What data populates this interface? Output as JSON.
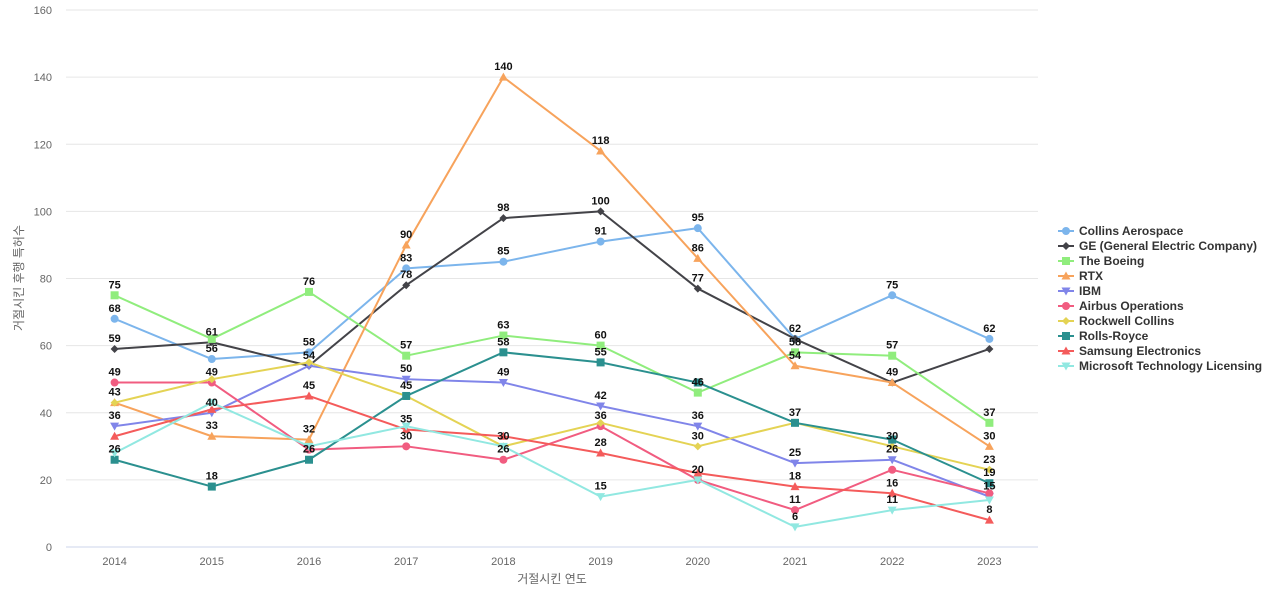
{
  "chart_data": {
    "type": "line",
    "title": "",
    "xlabel": "거절시킨 연도",
    "ylabel": "거절시킨 후행 특허수",
    "ylim": [
      0,
      160
    ],
    "yticks": [
      0,
      20,
      40,
      60,
      80,
      100,
      120,
      140,
      160
    ],
    "grid": true,
    "legend_position": "right",
    "categories": [
      "2014",
      "2015",
      "2016",
      "2017",
      "2018",
      "2019",
      "2020",
      "2021",
      "2022",
      "2023"
    ],
    "series": [
      {
        "name": "Collins Aerospace",
        "color": "#7cb5ec",
        "marker": "circle",
        "values": [
          68,
          56,
          58,
          83,
          85,
          91,
          95,
          62,
          75,
          62
        ]
      },
      {
        "name": "GE (General Electric Company)",
        "color": "#434348",
        "marker": "diamond",
        "values": [
          59,
          61,
          54,
          78,
          98,
          100,
          77,
          62,
          49,
          59
        ]
      },
      {
        "name": "The Boeing",
        "color": "#90ed7d",
        "marker": "square",
        "values": [
          75,
          62,
          76,
          57,
          63,
          60,
          46,
          58,
          57,
          37
        ]
      },
      {
        "name": "RTX",
        "color": "#f7a35c",
        "marker": "triangle",
        "values": [
          43,
          33,
          32,
          90,
          140,
          118,
          86,
          54,
          49,
          30
        ]
      },
      {
        "name": "IBM",
        "color": "#8085e9",
        "marker": "triangle-down",
        "values": [
          36,
          40,
          54,
          50,
          49,
          42,
          36,
          25,
          26,
          15
        ]
      },
      {
        "name": "Airbus Operations",
        "color": "#f15c80",
        "marker": "circle",
        "values": [
          49,
          49,
          29,
          30,
          26,
          36,
          20,
          11,
          23,
          16
        ]
      },
      {
        "name": "Rockwell Collins",
        "color": "#e4d354",
        "marker": "diamond",
        "values": [
          43,
          50,
          55,
          45,
          30,
          37,
          30,
          37,
          30,
          23
        ]
      },
      {
        "name": "Rolls-Royce",
        "color": "#2b908f",
        "marker": "square",
        "values": [
          26,
          18,
          26,
          45,
          58,
          55,
          49,
          37,
          32,
          19
        ]
      },
      {
        "name": "Samsung Electronics",
        "color": "#f45b5b",
        "marker": "triangle",
        "values": [
          33,
          41,
          45,
          35,
          33,
          28,
          22,
          18,
          16,
          8
        ]
      },
      {
        "name": "Microsoft Technology Licensing",
        "color": "#91e8e1",
        "marker": "triangle-down",
        "values": [
          28,
          43,
          30,
          36,
          30,
          15,
          20,
          6,
          11,
          14
        ]
      }
    ],
    "data_labels": [
      {
        "x": "2014",
        "text": "75"
      },
      {
        "x": "2014",
        "text": "68"
      },
      {
        "x": "2014",
        "text": "59"
      },
      {
        "x": "2014",
        "text": "49"
      },
      {
        "x": "2014",
        "text": "43"
      },
      {
        "x": "2014",
        "text": "36"
      },
      {
        "x": "2014",
        "text": "26"
      },
      {
        "x": "2015",
        "text": "61"
      },
      {
        "x": "2015",
        "text": "56"
      },
      {
        "x": "2015",
        "text": "49"
      },
      {
        "x": "2015",
        "text": "40"
      },
      {
        "x": "2015",
        "text": "33"
      },
      {
        "x": "2015",
        "text": "18"
      },
      {
        "x": "2016",
        "text": "76"
      },
      {
        "x": "2016",
        "text": "58"
      },
      {
        "x": "2016",
        "text": "54"
      },
      {
        "x": "2016",
        "text": "45"
      },
      {
        "x": "2016",
        "text": "32"
      },
      {
        "x": "2016",
        "text": "26"
      },
      {
        "x": "2017",
        "text": "90"
      },
      {
        "x": "2017",
        "text": "83"
      },
      {
        "x": "2017",
        "text": "78"
      },
      {
        "x": "2017",
        "text": "57"
      },
      {
        "x": "2017",
        "text": "50"
      },
      {
        "x": "2017",
        "text": "45"
      },
      {
        "x": "2017",
        "text": "35"
      },
      {
        "x": "2017",
        "text": "30"
      },
      {
        "x": "2018",
        "text": "140"
      },
      {
        "x": "2018",
        "text": "98"
      },
      {
        "x": "2018",
        "text": "85"
      },
      {
        "x": "2018",
        "text": "63"
      },
      {
        "x": "2018",
        "text": "58"
      },
      {
        "x": "2018",
        "text": "49"
      },
      {
        "x": "2018",
        "text": "30"
      },
      {
        "x": "2018",
        "text": "26"
      },
      {
        "x": "2019",
        "text": "118"
      },
      {
        "x": "2019",
        "text": "100"
      },
      {
        "x": "2019",
        "text": "91"
      },
      {
        "x": "2019",
        "text": "60"
      },
      {
        "x": "2019",
        "text": "55"
      },
      {
        "x": "2019",
        "text": "42"
      },
      {
        "x": "2019",
        "text": "36"
      },
      {
        "x": "2019",
        "text": "28"
      },
      {
        "x": "2019",
        "text": "15"
      },
      {
        "x": "2020",
        "text": "95"
      },
      {
        "x": "2020",
        "text": "86"
      },
      {
        "x": "2020",
        "text": "77"
      },
      {
        "x": "2020",
        "text": "46"
      },
      {
        "x": "2020",
        "text": "36"
      },
      {
        "x": "2020",
        "text": "30"
      },
      {
        "x": "2020",
        "text": "20"
      },
      {
        "x": "2021",
        "text": "62"
      },
      {
        "x": "2021",
        "text": "58"
      },
      {
        "x": "2021",
        "text": "54"
      },
      {
        "x": "2021",
        "text": "37"
      },
      {
        "x": "2021",
        "text": "25"
      },
      {
        "x": "2021",
        "text": "18"
      },
      {
        "x": "2021",
        "text": "11"
      },
      {
        "x": "2021",
        "text": "6"
      },
      {
        "x": "2022",
        "text": "75"
      },
      {
        "x": "2022",
        "text": "57"
      },
      {
        "x": "2022",
        "text": "49"
      },
      {
        "x": "2022",
        "text": "30"
      },
      {
        "x": "2022",
        "text": "26"
      },
      {
        "x": "2022",
        "text": "16"
      },
      {
        "x": "2022",
        "text": "11"
      },
      {
        "x": "2023",
        "text": "62"
      },
      {
        "x": "2023",
        "text": "37"
      },
      {
        "x": "2023",
        "text": "30"
      },
      {
        "x": "2023",
        "text": "23"
      },
      {
        "x": "2023",
        "text": "19"
      },
      {
        "x": "2023",
        "text": "15"
      },
      {
        "x": "2023",
        "text": "8"
      }
    ]
  }
}
